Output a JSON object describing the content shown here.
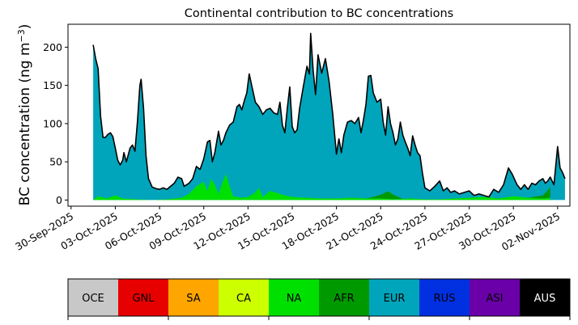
{
  "chart_data": {
    "type": "area",
    "title": "Continental contribution to BC concentrations",
    "ylabel_text": "BC concentration (ng m",
    "ylabel_unit_exponent": "−3",
    "ylabel_close": ")",
    "xlabel": "",
    "ylim": [
      -8,
      230
    ],
    "xlim": [
      "2025-09-29T19:00",
      "2025-11-02T20:00"
    ],
    "grid": false,
    "stacked": true,
    "yticks": [
      0,
      50,
      100,
      150,
      200
    ],
    "xticks": [
      {
        "date": "2025-09-30",
        "label": "30-Sep-2025"
      },
      {
        "date": "2025-10-03",
        "label": "03-Oct-2025"
      },
      {
        "date": "2025-10-06",
        "label": "06-Oct-2025"
      },
      {
        "date": "2025-10-09",
        "label": "09-Oct-2025"
      },
      {
        "date": "2025-10-12",
        "label": "12-Oct-2025"
      },
      {
        "date": "2025-10-15",
        "label": "15-Oct-2025"
      },
      {
        "date": "2025-10-18",
        "label": "18-Oct-2025"
      },
      {
        "date": "2025-10-21",
        "label": "21-Oct-2025"
      },
      {
        "date": "2025-10-24",
        "label": "24-Oct-2025"
      },
      {
        "date": "2025-10-27",
        "label": "27-Oct-2025"
      },
      {
        "date": "2025-10-30",
        "label": "30-Oct-2025"
      },
      {
        "date": "2025-11-02",
        "label": "02-Nov-2025"
      }
    ],
    "series": [
      {
        "name": "NA",
        "color": "#00e000",
        "points": [
          [
            "2025-10-01T12:00",
            0
          ],
          [
            "2025-10-01T20:00",
            5
          ],
          [
            "2025-10-02T10:00",
            2
          ],
          [
            "2025-10-03T00:00",
            6
          ],
          [
            "2025-10-03T12:00",
            2
          ],
          [
            "2025-10-04T12:00",
            1
          ],
          [
            "2025-10-05T12:00",
            0
          ],
          [
            "2025-10-06T12:00",
            1
          ],
          [
            "2025-10-07T12:00",
            3
          ],
          [
            "2025-10-08T00:00",
            8
          ],
          [
            "2025-10-08T12:00",
            18
          ],
          [
            "2025-10-09T00:00",
            24
          ],
          [
            "2025-10-09T06:00",
            12
          ],
          [
            "2025-10-09T12:00",
            28
          ],
          [
            "2025-10-09T18:00",
            20
          ],
          [
            "2025-10-10T00:00",
            8
          ],
          [
            "2025-10-10T06:00",
            22
          ],
          [
            "2025-10-10T12:00",
            34
          ],
          [
            "2025-10-10T18:00",
            18
          ],
          [
            "2025-10-11T00:00",
            5
          ],
          [
            "2025-10-11T12:00",
            3
          ],
          [
            "2025-10-12T00:00",
            4
          ],
          [
            "2025-10-12T12:00",
            10
          ],
          [
            "2025-10-12T18:00",
            16
          ],
          [
            "2025-10-13T00:00",
            4
          ],
          [
            "2025-10-13T12:00",
            12
          ],
          [
            "2025-10-14T00:00",
            9
          ],
          [
            "2025-10-14T12:00",
            6
          ],
          [
            "2025-10-15T00:00",
            4
          ],
          [
            "2025-10-16T00:00",
            3
          ],
          [
            "2025-10-17T00:00",
            2
          ],
          [
            "2025-10-18T00:00",
            2
          ],
          [
            "2025-10-19T00:00",
            3
          ],
          [
            "2025-10-20T00:00",
            2
          ],
          [
            "2025-10-21T00:00",
            2
          ],
          [
            "2025-10-22T00:00",
            1
          ],
          [
            "2025-10-23T00:00",
            2
          ],
          [
            "2025-10-24T00:00",
            1
          ],
          [
            "2025-10-25T00:00",
            1
          ],
          [
            "2025-10-26T00:00",
            2
          ],
          [
            "2025-10-27T00:00",
            3
          ],
          [
            "2025-10-28T00:00",
            4
          ],
          [
            "2025-10-29T00:00",
            2
          ],
          [
            "2025-10-30T00:00",
            5
          ],
          [
            "2025-10-31T00:00",
            3
          ],
          [
            "2025-11-01T00:00",
            2
          ],
          [
            "2025-11-01T12:00",
            3
          ]
        ]
      },
      {
        "name": "AFR",
        "color": "#009a00",
        "points": [
          [
            "2025-10-01T12:00",
            0
          ],
          [
            "2025-10-02T00:00",
            0
          ],
          [
            "2025-10-03T00:00",
            0
          ],
          [
            "2025-10-04T00:00",
            0
          ],
          [
            "2025-10-05T00:00",
            0
          ],
          [
            "2025-10-06T00:00",
            0
          ],
          [
            "2025-10-07T00:00",
            0
          ],
          [
            "2025-10-08T00:00",
            0
          ],
          [
            "2025-10-09T00:00",
            0
          ],
          [
            "2025-10-10T00:00",
            0
          ],
          [
            "2025-10-11T00:00",
            0
          ],
          [
            "2025-10-12T00:00",
            0
          ],
          [
            "2025-10-13T00:00",
            0
          ],
          [
            "2025-10-14T00:00",
            0
          ],
          [
            "2025-10-15T00:00",
            0
          ],
          [
            "2025-10-16T00:00",
            0
          ],
          [
            "2025-10-17T00:00",
            0
          ],
          [
            "2025-10-18T00:00",
            0
          ],
          [
            "2025-10-19T00:00",
            0
          ],
          [
            "2025-10-20T00:00",
            0
          ],
          [
            "2025-10-20T12:00",
            2
          ],
          [
            "2025-10-21T00:00",
            5
          ],
          [
            "2025-10-21T12:00",
            10
          ],
          [
            "2025-10-21T20:00",
            6
          ],
          [
            "2025-10-22T12:00",
            0
          ],
          [
            "2025-10-23T00:00",
            0
          ],
          [
            "2025-10-24T00:00",
            0
          ],
          [
            "2025-10-25T00:00",
            0
          ],
          [
            "2025-10-26T00:00",
            0
          ],
          [
            "2025-10-27T00:00",
            0
          ],
          [
            "2025-10-28T00:00",
            0
          ],
          [
            "2025-10-29T00:00",
            0
          ],
          [
            "2025-10-30T00:00",
            0
          ],
          [
            "2025-10-31T00:00",
            0
          ],
          [
            "2025-11-01T00:00",
            4
          ],
          [
            "2025-11-01T08:00",
            10
          ],
          [
            "2025-11-01T12:00",
            14
          ]
        ]
      },
      {
        "name": "EUR",
        "color": "#00a5bb",
        "points": []
      }
    ],
    "total": {
      "name": "Total",
      "color": "#000000",
      "points": [
        [
          "2025-10-01T12:00",
          203
        ],
        [
          "2025-10-01T16:00",
          185
        ],
        [
          "2025-10-01T20:00",
          172
        ],
        [
          "2025-10-02T00:00",
          110
        ],
        [
          "2025-10-02T04:00",
          82
        ],
        [
          "2025-10-02T08:00",
          82
        ],
        [
          "2025-10-02T12:00",
          86
        ],
        [
          "2025-10-02T16:00",
          88
        ],
        [
          "2025-10-02T20:00",
          83
        ],
        [
          "2025-10-03T00:00",
          68
        ],
        [
          "2025-10-03T04:00",
          52
        ],
        [
          "2025-10-03T08:00",
          46
        ],
        [
          "2025-10-03T12:00",
          52
        ],
        [
          "2025-10-03T14:00",
          62
        ],
        [
          "2025-10-03T18:00",
          50
        ],
        [
          "2025-10-04T00:00",
          68
        ],
        [
          "2025-10-04T04:00",
          72
        ],
        [
          "2025-10-04T08:00",
          64
        ],
        [
          "2025-10-04T12:00",
          102
        ],
        [
          "2025-10-04T16:00",
          150
        ],
        [
          "2025-10-04T18:00",
          158
        ],
        [
          "2025-10-04T22:00",
          120
        ],
        [
          "2025-10-05T02:00",
          58
        ],
        [
          "2025-10-05T06:00",
          28
        ],
        [
          "2025-10-05T12:00",
          17
        ],
        [
          "2025-10-05T18:00",
          15
        ],
        [
          "2025-10-06T00:00",
          14
        ],
        [
          "2025-10-06T06:00",
          16
        ],
        [
          "2025-10-06T12:00",
          14
        ],
        [
          "2025-10-06T18:00",
          18
        ],
        [
          "2025-10-07T00:00",
          22
        ],
        [
          "2025-10-07T06:00",
          30
        ],
        [
          "2025-10-07T12:00",
          28
        ],
        [
          "2025-10-07T16:00",
          18
        ],
        [
          "2025-10-08T00:00",
          22
        ],
        [
          "2025-10-08T06:00",
          28
        ],
        [
          "2025-10-08T12:00",
          44
        ],
        [
          "2025-10-08T18:00",
          40
        ],
        [
          "2025-10-09T00:00",
          54
        ],
        [
          "2025-10-09T06:00",
          76
        ],
        [
          "2025-10-09T10:00",
          78
        ],
        [
          "2025-10-09T14:00",
          50
        ],
        [
          "2025-10-09T18:00",
          62
        ],
        [
          "2025-10-10T00:00",
          90
        ],
        [
          "2025-10-10T04:00",
          72
        ],
        [
          "2025-10-10T08:00",
          78
        ],
        [
          "2025-10-10T12:00",
          88
        ],
        [
          "2025-10-10T18:00",
          98
        ],
        [
          "2025-10-11T00:00",
          102
        ],
        [
          "2025-10-11T06:00",
          122
        ],
        [
          "2025-10-11T10:00",
          125
        ],
        [
          "2025-10-11T14:00",
          118
        ],
        [
          "2025-10-11T18:00",
          130
        ],
        [
          "2025-10-11T22:00",
          140
        ],
        [
          "2025-10-12T02:00",
          165
        ],
        [
          "2025-10-12T06:00",
          150
        ],
        [
          "2025-10-12T12:00",
          128
        ],
        [
          "2025-10-12T18:00",
          122
        ],
        [
          "2025-10-13T00:00",
          112
        ],
        [
          "2025-10-13T06:00",
          118
        ],
        [
          "2025-10-13T12:00",
          120
        ],
        [
          "2025-10-13T18:00",
          114
        ],
        [
          "2025-10-14T00:00",
          112
        ],
        [
          "2025-10-14T04:00",
          128
        ],
        [
          "2025-10-14T08:00",
          98
        ],
        [
          "2025-10-14T12:00",
          88
        ],
        [
          "2025-10-14T16:00",
          120
        ],
        [
          "2025-10-14T20:00",
          148
        ],
        [
          "2025-10-15T00:00",
          96
        ],
        [
          "2025-10-15T04:00",
          88
        ],
        [
          "2025-10-15T08:00",
          92
        ],
        [
          "2025-10-15T12:00",
          120
        ],
        [
          "2025-10-15T18:00",
          148
        ],
        [
          "2025-10-16T00:00",
          175
        ],
        [
          "2025-10-16T04:00",
          165
        ],
        [
          "2025-10-16T06:00",
          218
        ],
        [
          "2025-10-16T10:00",
          170
        ],
        [
          "2025-10-16T14:00",
          138
        ],
        [
          "2025-10-16T18:00",
          190
        ],
        [
          "2025-10-17T00:00",
          166
        ],
        [
          "2025-10-17T06:00",
          185
        ],
        [
          "2025-10-17T12:00",
          155
        ],
        [
          "2025-10-17T18:00",
          112
        ],
        [
          "2025-10-18T00:00",
          60
        ],
        [
          "2025-10-18T04:00",
          80
        ],
        [
          "2025-10-18T08:00",
          62
        ],
        [
          "2025-10-18T12:00",
          85
        ],
        [
          "2025-10-18T18:00",
          102
        ],
        [
          "2025-10-19T00:00",
          104
        ],
        [
          "2025-10-19T06:00",
          100
        ],
        [
          "2025-10-19T12:00",
          108
        ],
        [
          "2025-10-19T16:00",
          88
        ],
        [
          "2025-10-19T20:00",
          105
        ],
        [
          "2025-10-20T00:00",
          125
        ],
        [
          "2025-10-20T04:00",
          162
        ],
        [
          "2025-10-20T08:00",
          163
        ],
        [
          "2025-10-20T12:00",
          140
        ],
        [
          "2025-10-20T18:00",
          128
        ],
        [
          "2025-10-21T00:00",
          132
        ],
        [
          "2025-10-21T04:00",
          102
        ],
        [
          "2025-10-21T08:00",
          85
        ],
        [
          "2025-10-21T12:00",
          122
        ],
        [
          "2025-10-21T16:00",
          100
        ],
        [
          "2025-10-21T20:00",
          88
        ],
        [
          "2025-10-22T00:00",
          72
        ],
        [
          "2025-10-22T04:00",
          80
        ],
        [
          "2025-10-22T08:00",
          102
        ],
        [
          "2025-10-22T12:00",
          85
        ],
        [
          "2025-10-22T16:00",
          76
        ],
        [
          "2025-10-22T20:00",
          68
        ],
        [
          "2025-10-23T00:00",
          58
        ],
        [
          "2025-10-23T04:00",
          84
        ],
        [
          "2025-10-23T08:00",
          72
        ],
        [
          "2025-10-23T12:00",
          62
        ],
        [
          "2025-10-23T16:00",
          58
        ],
        [
          "2025-10-23T20:00",
          35
        ],
        [
          "2025-10-24T00:00",
          16
        ],
        [
          "2025-10-24T08:00",
          12
        ],
        [
          "2025-10-24T16:00",
          18
        ],
        [
          "2025-10-25T00:00",
          25
        ],
        [
          "2025-10-25T06:00",
          12
        ],
        [
          "2025-10-25T12:00",
          16
        ],
        [
          "2025-10-25T18:00",
          10
        ],
        [
          "2025-10-26T00:00",
          12
        ],
        [
          "2025-10-26T08:00",
          8
        ],
        [
          "2025-10-26T16:00",
          10
        ],
        [
          "2025-10-27T00:00",
          12
        ],
        [
          "2025-10-27T08:00",
          6
        ],
        [
          "2025-10-27T16:00",
          8
        ],
        [
          "2025-10-28T00:00",
          6
        ],
        [
          "2025-10-28T08:00",
          4
        ],
        [
          "2025-10-28T16:00",
          14
        ],
        [
          "2025-10-29T00:00",
          10
        ],
        [
          "2025-10-29T08:00",
          20
        ],
        [
          "2025-10-29T16:00",
          42
        ],
        [
          "2025-10-29T22:00",
          34
        ],
        [
          "2025-10-30T06:00",
          20
        ],
        [
          "2025-10-30T12:00",
          14
        ],
        [
          "2025-10-30T18:00",
          20
        ],
        [
          "2025-10-31T00:00",
          14
        ],
        [
          "2025-10-31T06:00",
          22
        ],
        [
          "2025-10-31T12:00",
          20
        ],
        [
          "2025-10-31T18:00",
          25
        ],
        [
          "2025-11-01T00:00",
          28
        ],
        [
          "2025-11-01T04:00",
          22
        ],
        [
          "2025-11-01T08:00",
          25
        ],
        [
          "2025-11-01T12:00",
          30
        ],
        [
          "2025-11-01T18:00",
          20
        ],
        [
          "2025-11-02T00:00",
          70
        ],
        [
          "2025-11-02T04:00",
          42
        ],
        [
          "2025-11-02T08:00",
          36
        ],
        [
          "2025-11-02T12:00",
          28
        ]
      ]
    },
    "colorbar": {
      "categories": [
        "OCE",
        "GNL",
        "SA",
        "CA",
        "NA",
        "AFR",
        "EUR",
        "RUS",
        "ASI",
        "AUS"
      ],
      "colors": [
        "#c8c8c8",
        "#e60000",
        "#ffa500",
        "#ccff00",
        "#00e000",
        "#009a00",
        "#00a5bb",
        "#0030e0",
        "#6a00a8",
        "#000000"
      ],
      "label_colors": [
        "#000000",
        "#000000",
        "#000000",
        "#000000",
        "#000000",
        "#000000",
        "#000000",
        "#000000",
        "#000000",
        "#ffffff"
      ]
    }
  }
}
